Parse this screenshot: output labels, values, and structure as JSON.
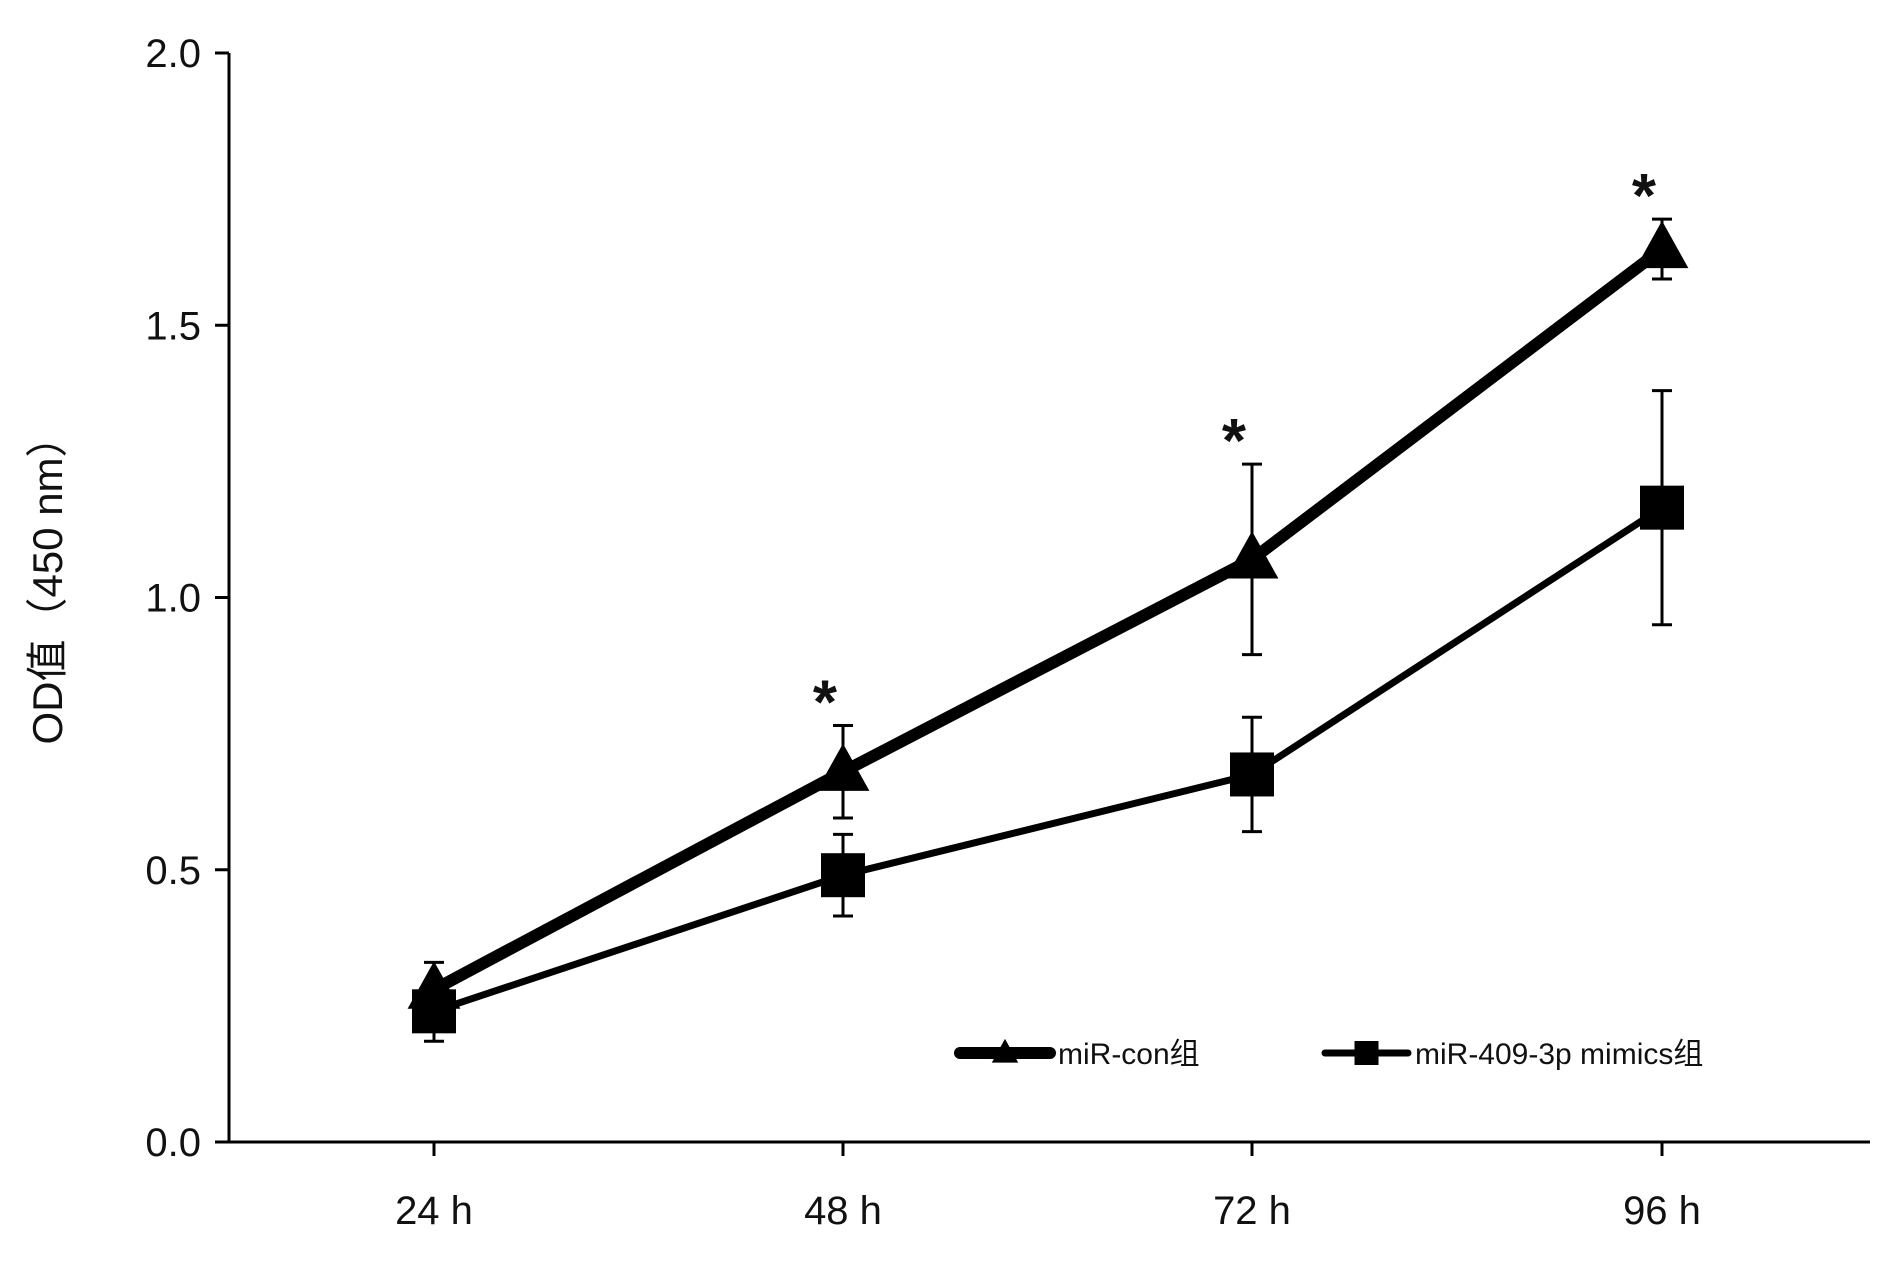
{
  "chart_data": {
    "type": "line",
    "title": "",
    "xlabel": "",
    "ylabel": "OD值（450 nm）",
    "categories": [
      "24 h",
      "48 h",
      "72 h",
      "96 h"
    ],
    "ylim": [
      0,
      2.0
    ],
    "yticks": [
      "0.0",
      "0.5",
      "1.0",
      "1.5",
      "2.0"
    ],
    "ytick_values": [
      0,
      0.5,
      1.0,
      1.5,
      2.0
    ],
    "grid": false,
    "legend_position": "bottom-right",
    "series": [
      {
        "name": "miR-con组",
        "marker": "triangle",
        "values": [
          0.28,
          0.68,
          1.07,
          1.64
        ],
        "errors": [
          0.05,
          0.085,
          0.175,
          0.055
        ],
        "significance": [
          "",
          "*",
          "*",
          "*"
        ]
      },
      {
        "name": "miR-409-3p mimics组",
        "marker": "square",
        "values": [
          0.24,
          0.49,
          0.675,
          1.165
        ],
        "errors": [
          0.055,
          0.075,
          0.105,
          0.215
        ],
        "significance": [
          "",
          "",
          "",
          ""
        ]
      }
    ],
    "colors": {
      "line": "#000000",
      "axis": "#000000"
    }
  }
}
